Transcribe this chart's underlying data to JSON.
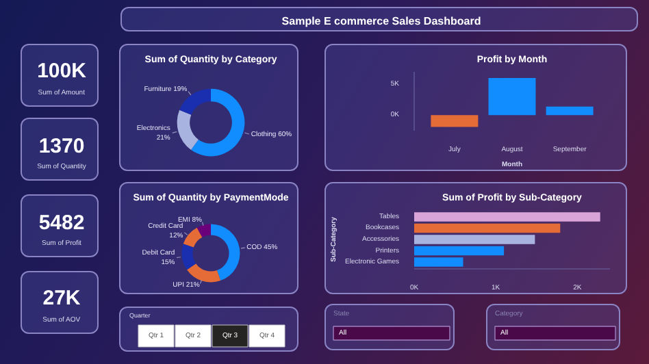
{
  "chart_data": [
    {
      "type": "other",
      "title": "Sample E commerce Sales Dashboard"
    },
    {
      "type": "other",
      "annotations": [
        "100K",
        "Sum of Amount",
        "1370",
        "Sum of Quantity",
        "5482",
        "Sum of Profit",
        "27K",
        "Sum of AOV"
      ]
    },
    {
      "type": "donut",
      "title": "Sum of Quantity by Category",
      "categories": [
        "Clothing",
        "Electronics",
        "Furniture"
      ],
      "values": [
        60,
        21,
        19
      ],
      "value_labels": [
        "60%",
        "21%",
        "19%"
      ],
      "colors": [
        "#118dff",
        "#a9b3e0",
        "#1a2fb0"
      ]
    },
    {
      "type": "bar",
      "title": "Profit by Month",
      "categories": [
        "July",
        "August",
        "September"
      ],
      "values": [
        -1900,
        6000,
        1400
      ],
      "colors": [
        "#e66c37",
        "#118dff",
        "#118dff"
      ],
      "xlabel": "Month",
      "ylim": [
        -2500,
        7000
      ],
      "yticks": [
        {
          "value": 0,
          "label": "0K"
        },
        {
          "value": 5000,
          "label": "5K"
        }
      ]
    },
    {
      "type": "donut",
      "title": "Sum of Quantity by PaymentMode",
      "categories": [
        "COD",
        "UPI",
        "Debit Card",
        "Credit Card",
        "EMI"
      ],
      "values": [
        45,
        21,
        15,
        12,
        8
      ],
      "value_labels": [
        "45%",
        "21%",
        "15%",
        "12%",
        "8%"
      ],
      "colors": [
        "#118dff",
        "#e66c37",
        "#1a2fb0",
        "#e66c37",
        "#6b007b"
      ]
    },
    {
      "type": "bar",
      "orientation": "horizontal",
      "title": "Sum of Profit by Sub-Category",
      "categories": [
        "Tables",
        "Bookcases",
        "Accessories",
        "Printers",
        "Electronic Games"
      ],
      "values": [
        2280,
        1790,
        1480,
        1100,
        600
      ],
      "colors": [
        "#d9a5d8",
        "#e66c37",
        "#a9b3e0",
        "#118dff",
        "#118dff"
      ],
      "ylabel": "Sub-Category",
      "xlim": [
        0,
        2400
      ],
      "xticks": [
        {
          "value": 0,
          "label": "0K"
        },
        {
          "value": 1000,
          "label": "1K"
        },
        {
          "value": 2000,
          "label": "2K"
        }
      ]
    },
    {
      "type": "other",
      "title": "Quarter",
      "categories": [
        "Qtr 1",
        "Qtr 2",
        "Qtr 3",
        "Qtr 4"
      ],
      "colors": [
        "#ffffff",
        "#ffffff",
        "#252423",
        "#ffffff"
      ]
    },
    {
      "type": "other",
      "title": "State",
      "annotations": [
        "All"
      ]
    },
    {
      "type": "other",
      "title": "Category",
      "annotations": [
        "All"
      ]
    }
  ]
}
